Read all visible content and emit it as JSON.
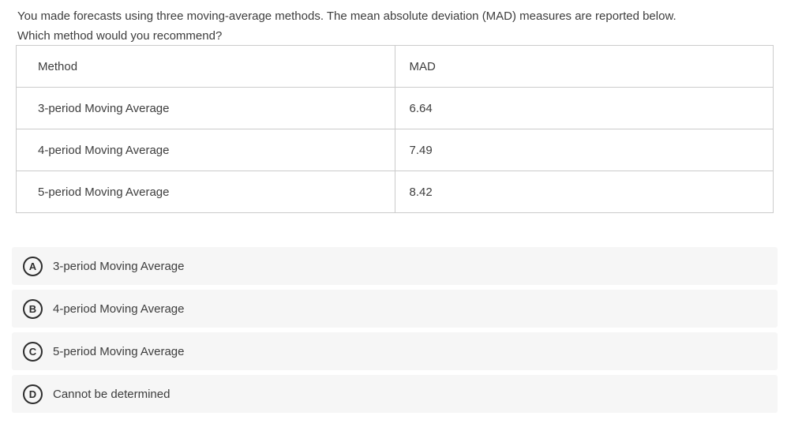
{
  "question": {
    "line1": "You made forecasts using three moving-average methods. The mean absolute deviation (MAD) measures are reported below.",
    "line2": "Which method would you recommend?"
  },
  "table": {
    "headers": [
      "Method",
      "MAD"
    ],
    "rows": [
      {
        "method": "3-period Moving Average",
        "mad": "6.64"
      },
      {
        "method": "4-period Moving Average",
        "mad": "7.49"
      },
      {
        "method": "5-period Moving Average",
        "mad": "8.42"
      }
    ]
  },
  "options": [
    {
      "letter": "A",
      "label": "3-period Moving Average"
    },
    {
      "letter": "B",
      "label": "4-period Moving Average"
    },
    {
      "letter": "C",
      "label": "5-period Moving Average"
    },
    {
      "letter": "D",
      "label": "Cannot be determined"
    }
  ],
  "colors": {
    "text": "#3d3d3d",
    "table_border": "#cbcbcb",
    "option_background": "#f6f6f6",
    "option_circle_border": "#2d2d2d",
    "page_background": "#ffffff"
  }
}
